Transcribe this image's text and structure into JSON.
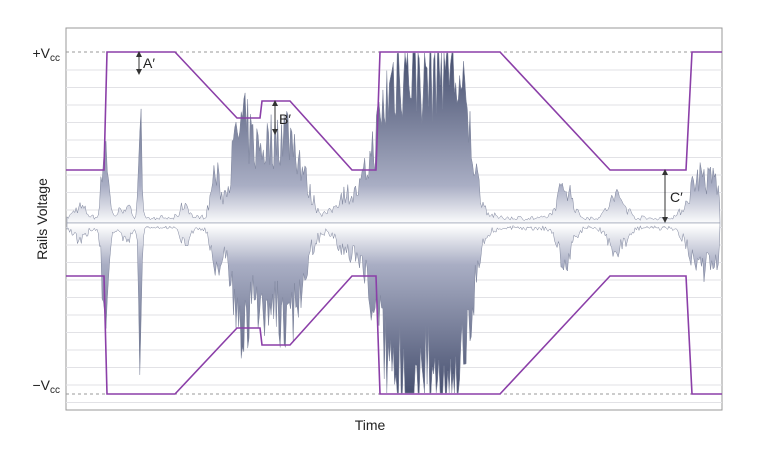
{
  "y_axis_title": "Rails Voltage",
  "x_axis_title": "Time",
  "rail_labels": {
    "positive": {
      "main": "+V",
      "sub": "cc"
    },
    "negative": {
      "main": "−V",
      "sub": "cc"
    }
  },
  "annotations": [
    "A′",
    "B′",
    "C′"
  ]
}
